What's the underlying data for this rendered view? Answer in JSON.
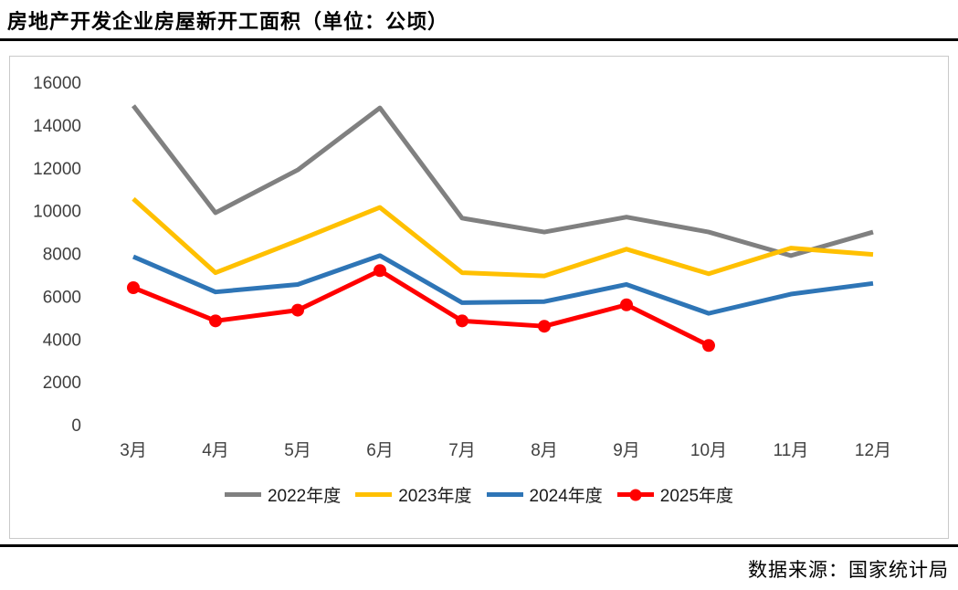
{
  "title": "房地产开发企业房屋新开工面积（单位：公顷）",
  "source": "数据来源：国家统计局",
  "chart_data": {
    "type": "line",
    "title": "房地产开发企业房屋新开工面积（单位：公顷）",
    "xlabel": "",
    "ylabel": "",
    "ylim": [
      0,
      16000
    ],
    "yticks": [
      0,
      2000,
      4000,
      6000,
      8000,
      10000,
      12000,
      14000,
      16000
    ],
    "grid": false,
    "legend_position": "bottom",
    "categories": [
      "3月",
      "4月",
      "5月",
      "6月",
      "7月",
      "8月",
      "9月",
      "10月",
      "11月",
      "12月"
    ],
    "series": [
      {
        "name": "2022年度",
        "color": "#808080",
        "markers": false,
        "values": [
          14900,
          9900,
          11900,
          14800,
          9650,
          9000,
          9700,
          9000,
          7900,
          9000
        ]
      },
      {
        "name": "2023年度",
        "color": "#FFC000",
        "markers": false,
        "values": [
          10550,
          7100,
          8600,
          10150,
          7100,
          6950,
          8200,
          7050,
          8250,
          7950
        ]
      },
      {
        "name": "2024年度",
        "color": "#2E75B6",
        "markers": false,
        "values": [
          7850,
          6200,
          6550,
          7900,
          5700,
          5750,
          6550,
          5200,
          6100,
          6600
        ]
      },
      {
        "name": "2025年度",
        "color": "#FF0000",
        "markers": true,
        "values": [
          6400,
          4850,
          5350,
          7200,
          4850,
          4600,
          5600,
          3700,
          null,
          null
        ]
      }
    ]
  }
}
